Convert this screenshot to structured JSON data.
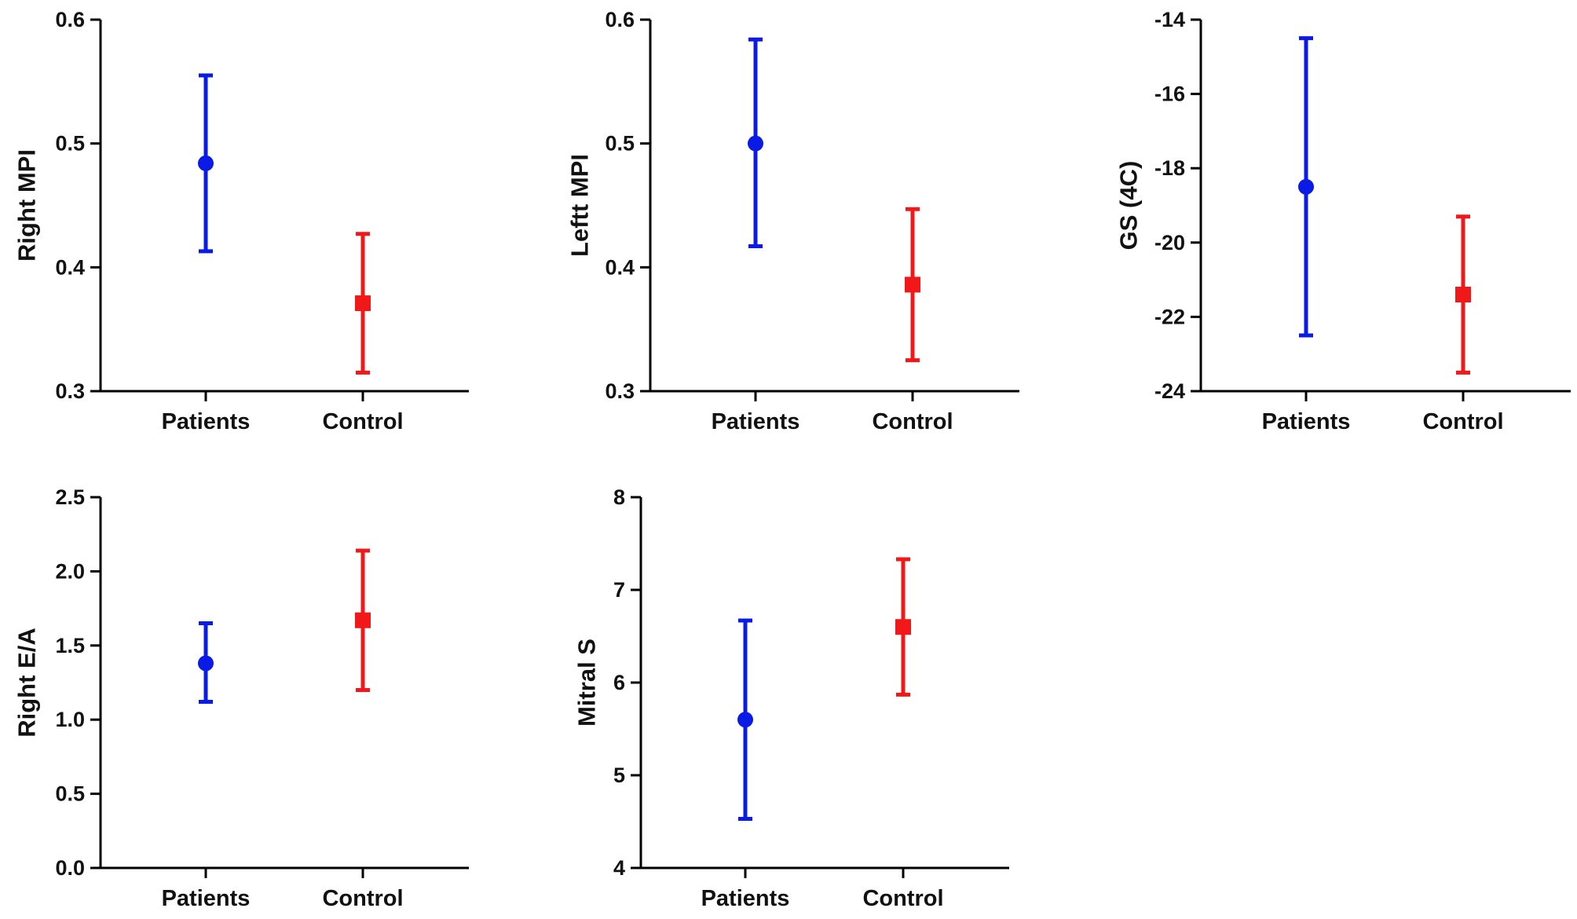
{
  "chart_data": [
    {
      "type": "scatter",
      "ylabel": "Right MPI",
      "categories": [
        "Patients",
        "Control"
      ],
      "ylim": [
        0.3,
        0.6
      ],
      "yticks": [
        "0.3",
        "0.4",
        "0.5",
        "0.6"
      ],
      "yvals": [
        0.3,
        0.4,
        0.5,
        0.6
      ],
      "series": [
        {
          "category": "Patients",
          "marker": "circle",
          "color": "#0a1be6",
          "mean": 0.484,
          "lower": 0.413,
          "upper": 0.555
        },
        {
          "category": "Control",
          "marker": "square",
          "color": "#f01818",
          "mean": 0.371,
          "lower": 0.315,
          "upper": 0.427
        }
      ]
    },
    {
      "type": "scatter",
      "ylabel": "Leftt MPI",
      "categories": [
        "Patients",
        "Control"
      ],
      "ylim": [
        0.3,
        0.6
      ],
      "yticks": [
        "0.3",
        "0.4",
        "0.5",
        "0.6"
      ],
      "yvals": [
        0.3,
        0.4,
        0.5,
        0.6
      ],
      "series": [
        {
          "category": "Patients",
          "marker": "circle",
          "color": "#0a1be6",
          "mean": 0.5,
          "lower": 0.417,
          "upper": 0.584
        },
        {
          "category": "Control",
          "marker": "square",
          "color": "#f01818",
          "mean": 0.386,
          "lower": 0.325,
          "upper": 0.447
        }
      ]
    },
    {
      "type": "scatter",
      "ylabel": "GS (4C)",
      "categories": [
        "Patients",
        "Control"
      ],
      "ylim": [
        -24,
        -14
      ],
      "yticks": [
        "-24",
        "-22",
        "-20",
        "-18",
        "-16",
        "-14"
      ],
      "yvals": [
        -24,
        -22,
        -20,
        -18,
        -16,
        -14
      ],
      "series": [
        {
          "category": "Patients",
          "marker": "circle",
          "color": "#0a1be6",
          "mean": -18.5,
          "lower": -22.5,
          "upper": -14.5
        },
        {
          "category": "Control",
          "marker": "square",
          "color": "#f01818",
          "mean": -21.4,
          "lower": -23.5,
          "upper": -19.3
        }
      ]
    },
    {
      "type": "scatter",
      "ylabel": "Right E/A",
      "categories": [
        "Patients",
        "Control"
      ],
      "ylim": [
        0.0,
        2.5
      ],
      "yticks": [
        "0.0",
        "0.5",
        "1.0",
        "1.5",
        "2.0",
        "2.5"
      ],
      "yvals": [
        0.0,
        0.5,
        1.0,
        1.5,
        2.0,
        2.5
      ],
      "series": [
        {
          "category": "Patients",
          "marker": "circle",
          "color": "#0a1be6",
          "mean": 1.38,
          "lower": 1.12,
          "upper": 1.65
        },
        {
          "category": "Control",
          "marker": "square",
          "color": "#f01818",
          "mean": 1.67,
          "lower": 1.2,
          "upper": 2.14
        }
      ]
    },
    {
      "type": "scatter",
      "ylabel": "Mitral S",
      "categories": [
        "Patients",
        "Control"
      ],
      "ylim": [
        4,
        8
      ],
      "yticks": [
        "4",
        "5",
        "6",
        "7",
        "8"
      ],
      "yvals": [
        4,
        5,
        6,
        7,
        8
      ],
      "series": [
        {
          "category": "Patients",
          "marker": "circle",
          "color": "#0a1be6",
          "mean": 5.6,
          "lower": 4.53,
          "upper": 6.67
        },
        {
          "category": "Control",
          "marker": "square",
          "color": "#f01818",
          "mean": 6.6,
          "lower": 5.87,
          "upper": 7.33
        }
      ]
    }
  ]
}
